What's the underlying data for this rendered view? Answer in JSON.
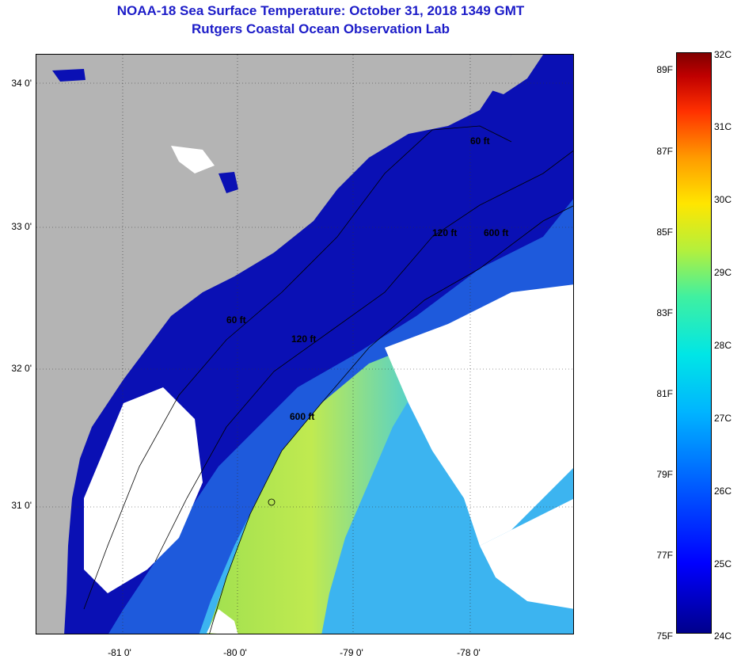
{
  "header": {
    "title": "NOAA-18 Sea Surface Temperature:  October 31, 2018 1349 GMT",
    "subtitle": "Rutgers Coastal Ocean Observation Lab"
  },
  "axes": {
    "lat_labels": [
      "34 0'",
      "33 0'",
      "32 0'",
      "31 0'"
    ],
    "lon_labels": [
      "-81 0'",
      "-80 0'",
      "-79 0'",
      "-78 0'"
    ]
  },
  "contours": {
    "labels": [
      "60 ft",
      "120 ft",
      "600 ft",
      "60 ft",
      "120 ft",
      "600 ft"
    ]
  },
  "colorbar": {
    "fahrenheit": [
      "89F",
      "87F",
      "85F",
      "83F",
      "81F",
      "79F",
      "77F",
      "75F"
    ],
    "celsius": [
      "32C",
      "31C",
      "30C",
      "29C",
      "28C",
      "27C",
      "26C",
      "25C",
      "24C"
    ],
    "colors": {
      "min": "#00008c",
      "low": "#0000ff",
      "mid": "#00e6e6",
      "high": "#ffe600",
      "max": "#800000"
    }
  },
  "map_colors": {
    "land": "#b4b4b4",
    "cloud": "#ffffff",
    "shelf_water": "#0a10b4",
    "mid_water": "#1e5adc",
    "gulf_stream": "#b4e650",
    "offshore": "#3cb4f0"
  }
}
